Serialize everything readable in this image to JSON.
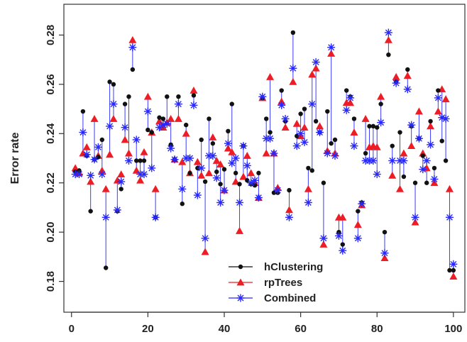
{
  "chart_data": {
    "type": "scatter",
    "title": "",
    "xlabel": "",
    "ylabel": "Error rate",
    "xlim": [
      -2,
      103
    ],
    "ylim": [
      0.1675,
      0.2925
    ],
    "x_ticks": [
      0,
      20,
      40,
      60,
      80,
      100
    ],
    "y_ticks": [
      0.18,
      0.2,
      0.22,
      0.24,
      0.26,
      0.28
    ],
    "x_tick_labels": [
      "0",
      "20",
      "40",
      "60",
      "80",
      "100"
    ],
    "y_tick_labels": [
      "0.18",
      "0.20",
      "0.22",
      "0.24",
      "0.26",
      "0.28"
    ],
    "grid": false,
    "legend_position": "bottom-center",
    "x": [
      1,
      2,
      3,
      4,
      5,
      6,
      7,
      8,
      9,
      10,
      11,
      12,
      13,
      14,
      15,
      16,
      17,
      18,
      19,
      20,
      21,
      22,
      23,
      24,
      25,
      26,
      27,
      28,
      29,
      30,
      31,
      32,
      33,
      34,
      35,
      36,
      37,
      38,
      39,
      40,
      41,
      42,
      43,
      44,
      45,
      46,
      47,
      48,
      49,
      50,
      51,
      52,
      53,
      54,
      55,
      56,
      57,
      58,
      59,
      60,
      61,
      62,
      63,
      64,
      65,
      66,
      67,
      68,
      69,
      70,
      71,
      72,
      73,
      74,
      75,
      76,
      77,
      78,
      79,
      80,
      81,
      82,
      83,
      84,
      85,
      86,
      87,
      88,
      89,
      90,
      91,
      92,
      93,
      94,
      95,
      96,
      97,
      98,
      99,
      100
    ],
    "series": [
      {
        "name": "hClustering",
        "color": "#111111",
        "marker": "dot",
        "values": [
          0.2245,
          0.225,
          0.249,
          0.231,
          0.2085,
          0.2295,
          0.2305,
          0.2375,
          0.1855,
          0.261,
          0.26,
          0.2085,
          0.2175,
          0.252,
          0.255,
          0.266,
          0.229,
          0.229,
          0.229,
          0.2415,
          0.2405,
          0.206,
          0.2465,
          0.246,
          0.255,
          0.2355,
          0.2295,
          0.255,
          0.2115,
          0.2435,
          0.224,
          0.2555,
          0.226,
          0.2375,
          0.2205,
          0.246,
          0.236,
          0.2245,
          0.2195,
          0.2255,
          0.241,
          0.252,
          0.224,
          0.2195,
          0.235,
          0.221,
          0.2195,
          0.219,
          0.224,
          0.2545,
          0.246,
          0.2405,
          0.216,
          0.216,
          0.2575,
          0.245,
          0.217,
          0.281,
          0.239,
          0.248,
          0.25,
          0.226,
          0.225,
          0.245,
          0.2405,
          0.22,
          0.249,
          0.236,
          0.2375,
          0.2,
          0.195,
          0.2575,
          0.255,
          0.246,
          0.2085,
          0.212,
          0.232,
          0.243,
          0.243,
          0.2425,
          0.252,
          0.2,
          0.272,
          0.235,
          0.261,
          0.2405,
          0.2225,
          0.266,
          0.243,
          0.22,
          0.238,
          0.231,
          0.22,
          0.245,
          0.226,
          0.2575,
          0.237,
          0.229,
          0.1845,
          0.1845
        ]
      },
      {
        "name": "rpTrees",
        "color": "#ee1c24",
        "marker": "triangle",
        "values": [
          0.226,
          0.224,
          0.232,
          0.2345,
          0.2205,
          0.246,
          0.231,
          0.225,
          0.2175,
          0.2315,
          0.246,
          0.221,
          0.2235,
          0.2375,
          0.232,
          0.278,
          0.225,
          0.221,
          0.2325,
          0.255,
          0.2405,
          0.2175,
          0.245,
          0.2425,
          0.2445,
          0.246,
          0.2295,
          0.246,
          0.2285,
          0.24,
          0.224,
          0.2575,
          0.2285,
          0.223,
          0.192,
          0.224,
          0.2385,
          0.229,
          0.2275,
          0.217,
          0.234,
          0.2325,
          0.2205,
          0.2005,
          0.2225,
          0.231,
          0.224,
          0.22,
          0.214,
          0.2545,
          0.232,
          0.263,
          0.232,
          0.218,
          0.253,
          0.2425,
          0.209,
          0.261,
          0.244,
          0.239,
          0.2425,
          0.2175,
          0.264,
          0.2665,
          0.243,
          0.195,
          0.233,
          0.2725,
          0.232,
          0.206,
          0.206,
          0.2525,
          0.2525,
          0.2405,
          0.203,
          0.211,
          0.246,
          0.2345,
          0.235,
          0.2345,
          0.255,
          0.1895,
          0.278,
          0.223,
          0.263,
          0.2175,
          0.232,
          0.2635,
          0.235,
          0.204,
          0.249,
          0.232,
          0.226,
          0.243,
          0.22,
          0.249,
          0.258,
          0.254,
          0.2175,
          0.182
        ]
      },
      {
        "name": "Combined",
        "color": "#2727ff",
        "marker": "star",
        "values": [
          0.2235,
          0.2235,
          0.2405,
          0.2315,
          0.223,
          0.2295,
          0.2345,
          0.2235,
          0.206,
          0.243,
          0.252,
          0.209,
          0.2205,
          0.2425,
          0.229,
          0.275,
          0.2375,
          0.2235,
          0.2235,
          0.249,
          0.226,
          0.206,
          0.2425,
          0.2435,
          0.244,
          0.234,
          0.2295,
          0.252,
          0.2175,
          0.23,
          0.23,
          0.2515,
          0.215,
          0.226,
          0.1975,
          0.231,
          0.231,
          0.222,
          0.212,
          0.217,
          0.236,
          0.228,
          0.23,
          0.212,
          0.235,
          0.227,
          0.22,
          0.221,
          0.214,
          0.255,
          0.238,
          0.238,
          0.232,
          0.217,
          0.2515,
          0.246,
          0.206,
          0.2665,
          0.235,
          0.24,
          0.2365,
          0.212,
          0.252,
          0.269,
          0.2405,
          0.1975,
          0.232,
          0.275,
          0.231,
          0.1985,
          0.1925,
          0.2495,
          0.2545,
          0.235,
          0.1975,
          0.2115,
          0.229,
          0.229,
          0.229,
          0.2235,
          0.2445,
          0.1915,
          0.281,
          0.229,
          0.2605,
          0.229,
          0.229,
          0.258,
          0.2435,
          0.206,
          0.238,
          0.2255,
          0.229,
          0.2355,
          0.2215,
          0.2545,
          0.2465,
          0.246,
          0.206,
          0.187
        ]
      }
    ]
  }
}
